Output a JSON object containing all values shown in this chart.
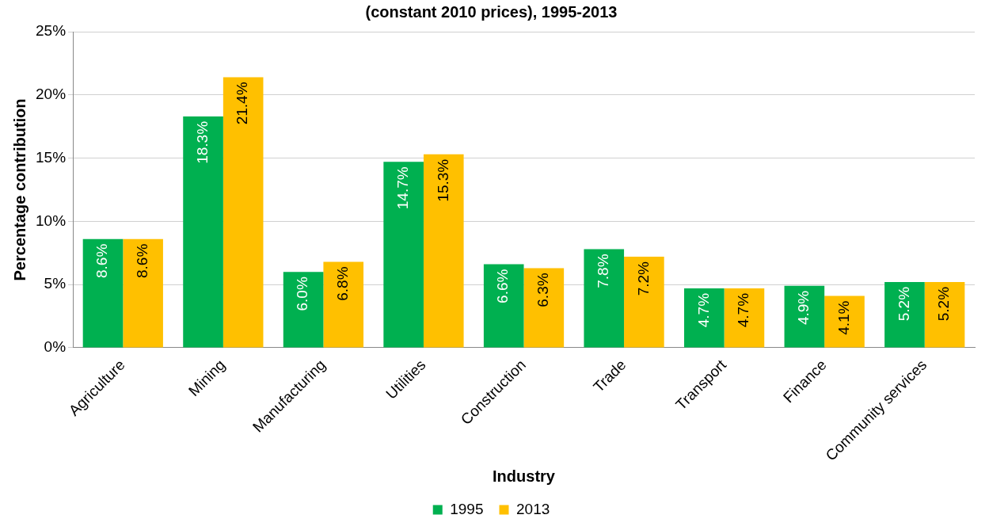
{
  "chart_data": {
    "type": "bar",
    "title": "(constant 2010 prices), 1995-2013",
    "xlabel": "Industry",
    "ylabel": "Percentage contribution",
    "categories": [
      "Agriculture",
      "Mining",
      "Manufacturing",
      "Utilities",
      "Construction",
      "Trade",
      "Transport",
      "Finance",
      "Community services"
    ],
    "series": [
      {
        "name": "1995",
        "color": "#00b050",
        "values": [
          8.6,
          18.3,
          6.0,
          14.7,
          6.6,
          7.8,
          4.7,
          4.9,
          5.2
        ],
        "value_labels": [
          "8.6%",
          "18.3%",
          "6.0%",
          "14.7%",
          "6.6%",
          "7.8%",
          "4.7%",
          "4.9%",
          "5.2%"
        ]
      },
      {
        "name": "2013",
        "color": "#ffc000",
        "values": [
          8.6,
          21.4,
          6.8,
          15.3,
          6.3,
          7.2,
          4.7,
          4.1,
          5.2
        ],
        "value_labels": [
          "8.6%",
          "21.4%",
          "6.8%",
          "15.3%",
          "6.3%",
          "7.2%",
          "4.7%",
          "4.1%",
          "5.2%"
        ]
      }
    ],
    "ylim": [
      0,
      25
    ],
    "yticks": [
      {
        "value": 0,
        "label": "0%"
      },
      {
        "value": 5,
        "label": "5%"
      },
      {
        "value": 10,
        "label": "10%"
      },
      {
        "value": 15,
        "label": "15%"
      },
      {
        "value": 20,
        "label": "20%"
      },
      {
        "value": 25,
        "label": "25%"
      }
    ],
    "grid": "y",
    "legend": "bottom"
  }
}
